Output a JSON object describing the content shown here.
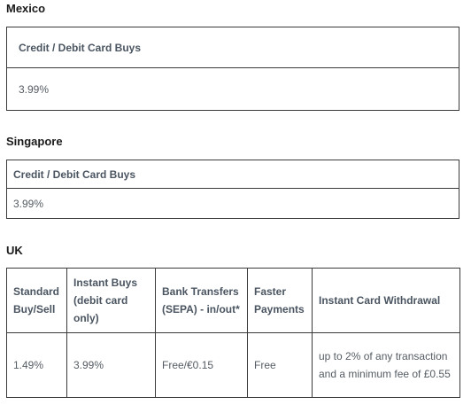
{
  "sections": {
    "mexico": {
      "title": "Mexico",
      "headers": [
        "Credit / Debit Card Buys"
      ],
      "rows": [
        [
          "3.99%"
        ]
      ]
    },
    "singapore": {
      "title": "Singapore",
      "headers": [
        "Credit / Debit Card Buys"
      ],
      "rows": [
        [
          "3.99%"
        ]
      ]
    },
    "uk": {
      "title": "UK",
      "headers": [
        "Standard Buy/Sell",
        "Instant Buys (debit card only)",
        "Bank Transfers (SEPA) - in/out*",
        "Faster Payments",
        "Instant Card Withdrawal"
      ],
      "rows": [
        [
          "1.49%",
          "3.99%",
          "Free/€0.15",
          "Free",
          "up to 2% of any transaction and a minimum fee of £0.55"
        ]
      ]
    }
  }
}
